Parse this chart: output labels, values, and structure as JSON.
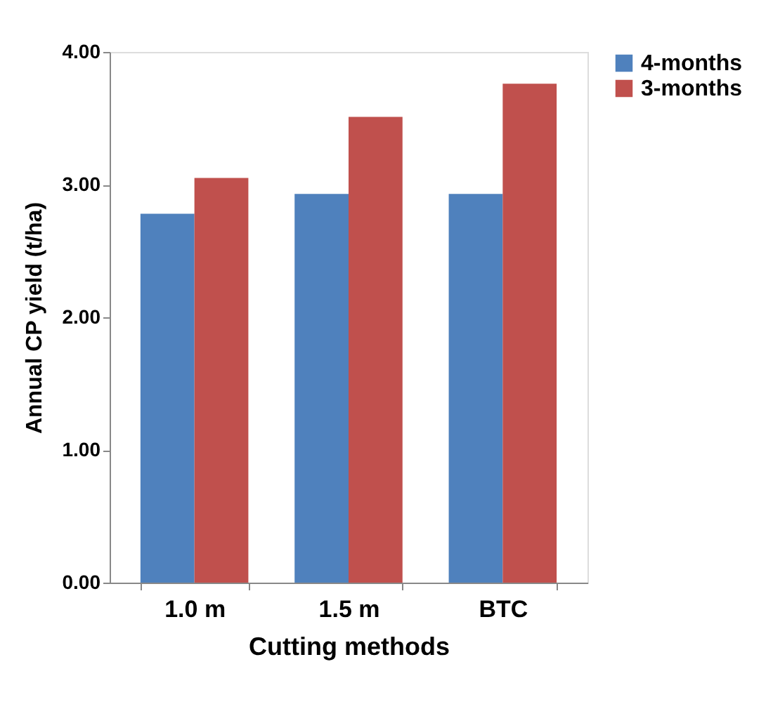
{
  "chart_data": {
    "type": "bar",
    "xlabel": "Cutting methods",
    "ylabel": "Annual CP yield (t/ha)",
    "categories": [
      "1.0 m",
      "1.5 m",
      "BTC"
    ],
    "series": [
      {
        "name": "4-months",
        "color": "#4f81bd",
        "values": [
          2.78,
          2.93,
          2.93
        ]
      },
      {
        "name": "3-months",
        "color": "#c0504d",
        "values": [
          3.05,
          3.51,
          3.76
        ]
      }
    ],
    "ylim": [
      0,
      4
    ],
    "yticks": [
      {
        "value": 0,
        "label": "0.00"
      },
      {
        "value": 1,
        "label": "1.00"
      },
      {
        "value": 2,
        "label": "2.00"
      },
      {
        "value": 3,
        "label": "3.00"
      },
      {
        "value": 4,
        "label": "4.00"
      }
    ],
    "grid": false,
    "legend": "right"
  }
}
